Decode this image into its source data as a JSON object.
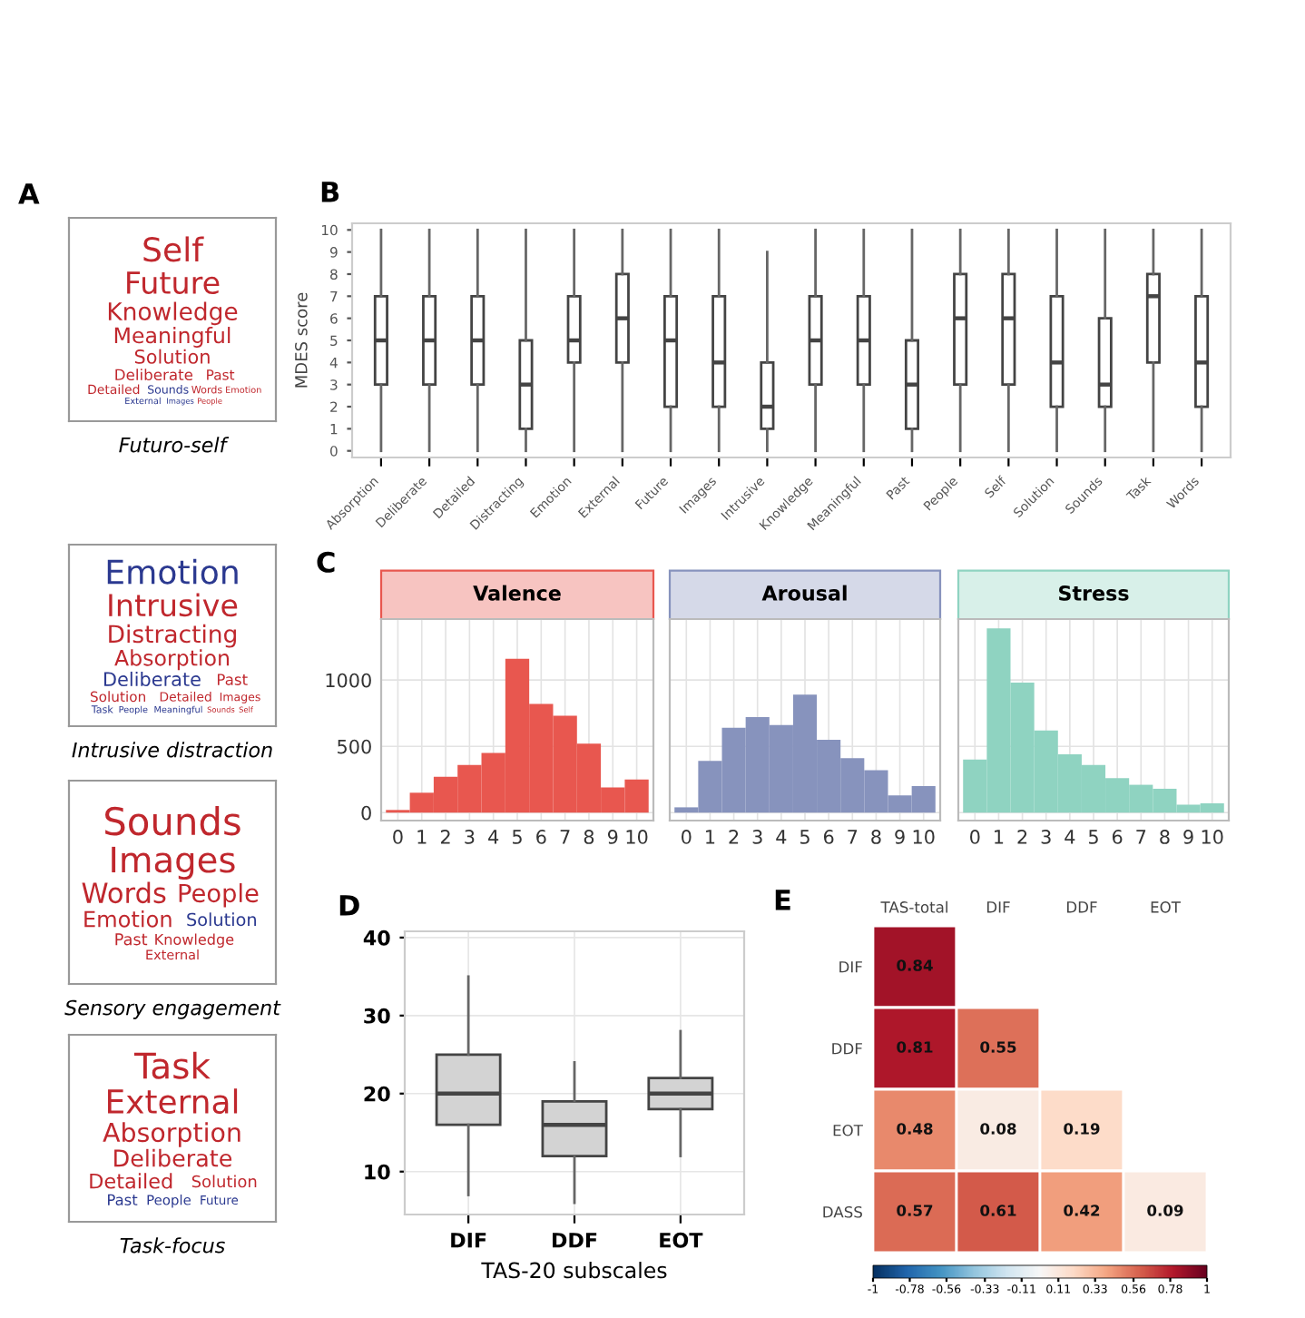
{
  "chart_data": [
    {
      "type": "other",
      "title": "Futuro-self",
      "annotations": [
        "A"
      ],
      "categories": [
        "Self",
        "Future",
        "Knowledge",
        "Meaningful",
        "Solution",
        "Deliberate",
        "Past",
        "Detailed",
        "Sounds",
        "Words",
        "Emotion",
        "External",
        "Images",
        "People"
      ],
      "colors": [
        "#c0272d",
        "#c0272d",
        "#c0272d",
        "#c0272d",
        "#c0272d",
        "#c0272d",
        "#c0272d",
        "#c0272d",
        "#2b3990",
        "#c0272d",
        "#c0272d",
        "#2b3990",
        "#2b3990",
        "#c0272d"
      ]
    },
    {
      "type": "other",
      "title": "Intrusive distraction",
      "categories": [
        "Emotion",
        "Intrusive",
        "Distracting",
        "Absorption",
        "Deliberate",
        "Past",
        "Solution",
        "Detailed",
        "Images",
        "Task",
        "People",
        "Meaningful",
        "Sounds",
        "Self"
      ],
      "colors": [
        "#2b3990",
        "#c0272d",
        "#c0272d",
        "#c0272d",
        "#2b3990",
        "#c0272d",
        "#c0272d",
        "#c0272d",
        "#c0272d",
        "#2b3990",
        "#2b3990",
        "#2b3990",
        "#c0272d",
        "#c0272d"
      ]
    },
    {
      "type": "other",
      "title": "Sensory engagement",
      "categories": [
        "Sounds",
        "Images",
        "Words",
        "People",
        "Emotion",
        "Solution",
        "Past",
        "Knowledge",
        "External"
      ],
      "colors": [
        "#c0272d",
        "#c0272d",
        "#c0272d",
        "#c0272d",
        "#c0272d",
        "#2b3990",
        "#c0272d",
        "#c0272d",
        "#c0272d"
      ]
    },
    {
      "type": "other",
      "title": "Task-focus",
      "categories": [
        "Task",
        "External",
        "Absorption",
        "Deliberate",
        "Detailed",
        "Solution",
        "Past",
        "People",
        "Future"
      ],
      "colors": [
        "#c0272d",
        "#c0272d",
        "#c0272d",
        "#c0272d",
        "#c0272d",
        "#c0272d",
        "#2b3990",
        "#2b3990",
        "#2b3990"
      ]
    },
    {
      "type": "box",
      "annotations": [
        "B"
      ],
      "ylabel": "MDES score",
      "color": "#ffffff",
      "grid": false,
      "ylim": [
        -0.3,
        10.3
      ],
      "yticks": [
        0,
        1,
        2,
        3,
        4,
        5,
        6,
        7,
        8,
        9,
        10
      ],
      "categories": [
        "Absorption",
        "Deliberate",
        "Detailed",
        "Distracting",
        "Emotion",
        "External",
        "Future",
        "Images",
        "Intrusive",
        "Knowledge",
        "Meaningful",
        "Past",
        "People",
        "Self",
        "Solution",
        "Sounds",
        "Task",
        "Words"
      ],
      "boxes": [
        {
          "low": 0,
          "q1": 3,
          "median": 5,
          "q3": 7,
          "high": 10
        },
        {
          "low": 0,
          "q1": 3,
          "median": 5,
          "q3": 7,
          "high": 10
        },
        {
          "low": 0,
          "q1": 3,
          "median": 5,
          "q3": 7,
          "high": 10
        },
        {
          "low": 0,
          "q1": 1,
          "median": 3,
          "q3": 5,
          "high": 10
        },
        {
          "low": 0,
          "q1": 4,
          "median": 5,
          "q3": 7,
          "high": 10
        },
        {
          "low": 0,
          "q1": 4,
          "median": 6,
          "q3": 8,
          "high": 10
        },
        {
          "low": 0,
          "q1": 2,
          "median": 5,
          "q3": 7,
          "high": 10
        },
        {
          "low": 0,
          "q1": 2,
          "median": 4,
          "q3": 7,
          "high": 10
        },
        {
          "low": 0,
          "q1": 1,
          "median": 2,
          "q3": 4,
          "high": 9
        },
        {
          "low": 0,
          "q1": 3,
          "median": 5,
          "q3": 7,
          "high": 10
        },
        {
          "low": 0,
          "q1": 3,
          "median": 5,
          "q3": 7,
          "high": 10
        },
        {
          "low": 0,
          "q1": 1,
          "median": 3,
          "q3": 5,
          "high": 10
        },
        {
          "low": 0,
          "q1": 3,
          "median": 6,
          "q3": 8,
          "high": 10
        },
        {
          "low": 0,
          "q1": 3,
          "median": 6,
          "q3": 8,
          "high": 10
        },
        {
          "low": 0,
          "q1": 2,
          "median": 4,
          "q3": 7,
          "high": 10
        },
        {
          "low": 0,
          "q1": 2,
          "median": 3,
          "q3": 6,
          "high": 10
        },
        {
          "low": 0,
          "q1": 4,
          "median": 7,
          "q3": 8,
          "high": 10
        },
        {
          "low": 0,
          "q1": 2,
          "median": 4,
          "q3": 7,
          "high": 10
        }
      ]
    },
    {
      "type": "histogram",
      "title": "Valence",
      "annotations": [
        "C"
      ],
      "color": "#e8574f",
      "grid": true,
      "ylim": [
        -60,
        1460
      ],
      "yticks": [
        0,
        500,
        1000
      ],
      "xticks": [
        0,
        1,
        2,
        3,
        4,
        5,
        6,
        7,
        8,
        9,
        10
      ],
      "xlim": [
        -0.7,
        10.7
      ],
      "bins": [
        -0.5,
        0.5,
        1.5,
        2.5,
        3.5,
        4.5,
        5.5,
        6.5,
        7.5,
        8.5,
        9.5,
        10.5
      ],
      "values": [
        20,
        150,
        270,
        360,
        450,
        1160,
        820,
        730,
        520,
        190,
        250
      ]
    },
    {
      "type": "histogram",
      "title": "Arousal",
      "color": "#8793bd",
      "grid": true,
      "tick_labels": "x",
      "ylim": [
        -60,
        1460
      ],
      "yticks": [
        0,
        500,
        1000
      ],
      "xticks": [
        0,
        1,
        2,
        3,
        4,
        5,
        6,
        7,
        8,
        9,
        10
      ],
      "xlim": [
        -0.7,
        10.7
      ],
      "bins": [
        -0.5,
        0.5,
        1.5,
        2.5,
        3.5,
        4.5,
        5.5,
        6.5,
        7.5,
        8.5,
        9.5,
        10.5
      ],
      "values": [
        40,
        390,
        640,
        720,
        660,
        890,
        550,
        410,
        320,
        130,
        200
      ]
    },
    {
      "type": "histogram",
      "title": "Stress",
      "color": "#8fd3c1",
      "grid": true,
      "tick_labels": "x",
      "ylim": [
        -60,
        1460
      ],
      "yticks": [
        0,
        500,
        1000
      ],
      "xticks": [
        0,
        1,
        2,
        3,
        4,
        5,
        6,
        7,
        8,
        9,
        10
      ],
      "xlim": [
        -0.7,
        10.7
      ],
      "bins": [
        -0.5,
        0.5,
        1.5,
        2.5,
        3.5,
        4.5,
        5.5,
        6.5,
        7.5,
        8.5,
        9.5,
        10.5
      ],
      "values": [
        400,
        1390,
        980,
        620,
        440,
        360,
        260,
        210,
        180,
        60,
        70
      ]
    },
    {
      "type": "box",
      "annotations": [
        "D"
      ],
      "xlabel": "TAS-20 subscales",
      "color": "#d3d3d3",
      "grid": true,
      "ylim": [
        4.5,
        40.8
      ],
      "yticks": [
        10,
        20,
        30,
        40
      ],
      "categories": [
        "DIF",
        "DDF",
        "EOT"
      ],
      "boxes": [
        {
          "low": 7,
          "q1": 16,
          "median": 20,
          "q3": 25,
          "high": 35
        },
        {
          "low": 6,
          "q1": 12,
          "median": 16,
          "q3": 19,
          "high": 24
        },
        {
          "low": 12,
          "q1": 18,
          "median": 20,
          "q3": 22,
          "high": 28
        }
      ]
    },
    {
      "type": "heatmap",
      "annotations": [
        "E"
      ],
      "data_labels": true,
      "categories": [
        "TAS-total",
        "DIF",
        "DDF",
        "EOT"
      ],
      "y_categories": [
        "DIF",
        "DDF",
        "EOT",
        "DASS"
      ],
      "cells": [
        [
          0.84,
          null,
          null,
          null
        ],
        [
          0.81,
          0.55,
          null,
          null
        ],
        [
          0.48,
          0.08,
          0.19,
          null
        ],
        [
          0.57,
          0.61,
          0.42,
          0.09
        ]
      ],
      "clim": [
        -1,
        1
      ],
      "cticks": [
        -1,
        -0.78,
        -0.56,
        -0.33,
        -0.11,
        0.11,
        0.33,
        0.56,
        0.78,
        1
      ]
    }
  ]
}
